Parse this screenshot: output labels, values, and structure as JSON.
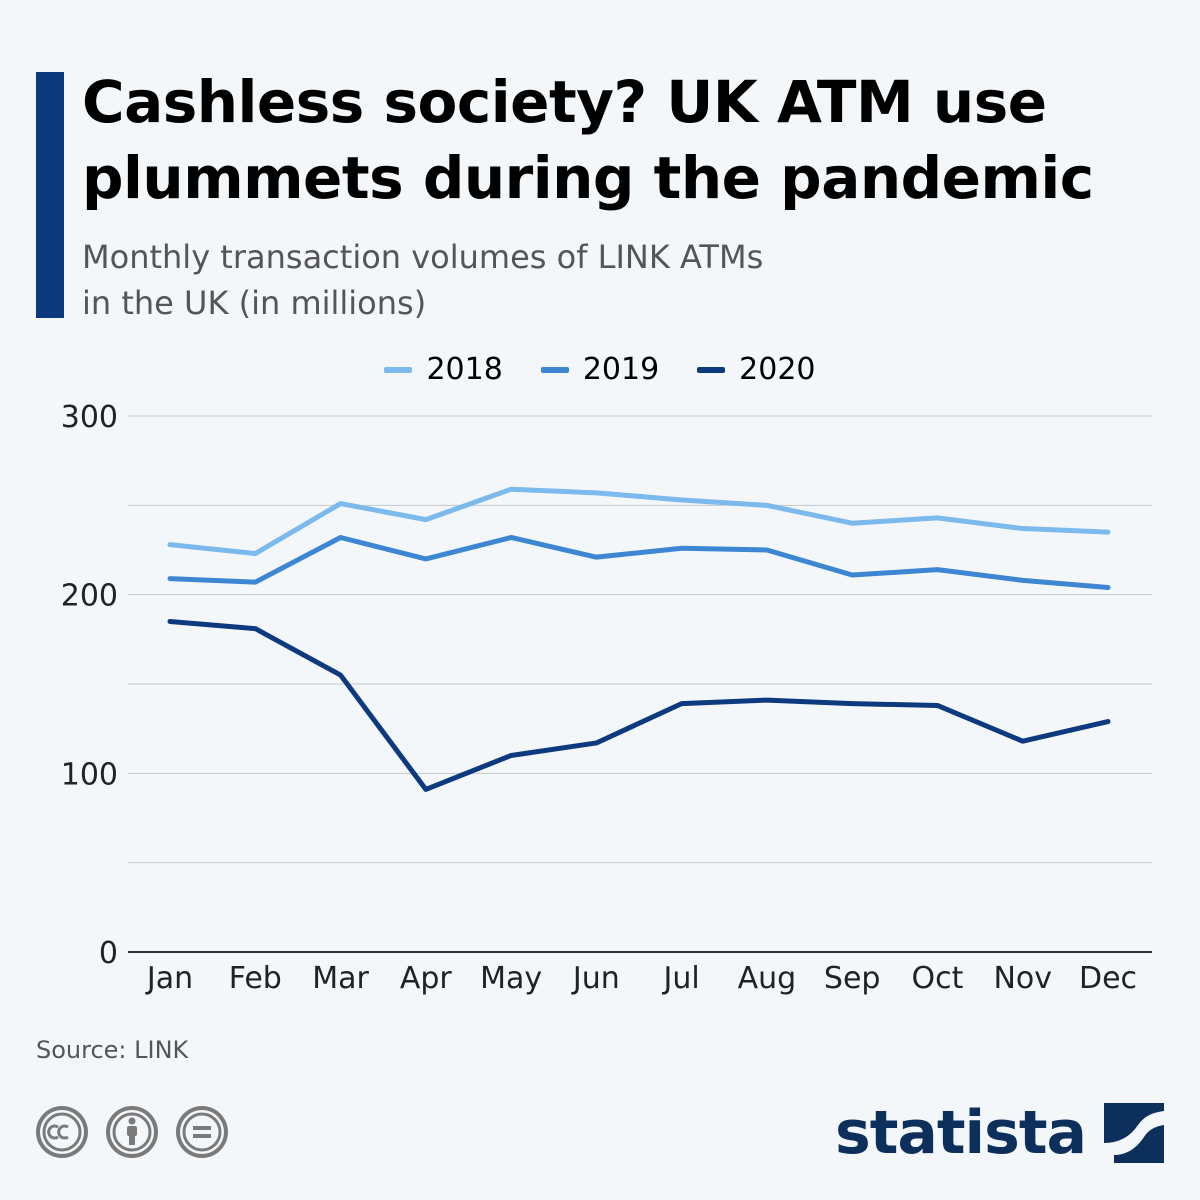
{
  "header": {
    "title": "Cashless society? UK ATM use plummets during the pandemic",
    "subtitle": "Monthly transaction volumes of LINK ATMs in the UK (in millions)"
  },
  "footer": {
    "source": "Source: LINK",
    "brand": "statista",
    "license_icons": [
      "cc-icon",
      "attribution-icon",
      "no-derivatives-icon"
    ]
  },
  "colors": {
    "accent": "#0d3a7f",
    "s2018": "#7cb9ec",
    "s2019": "#3c86d3",
    "s2020": "#0d3a7f",
    "grid": "#c7c7c7",
    "axis": "#333333"
  },
  "chart_data": {
    "type": "line",
    "title": "Cashless society? UK ATM use plummets during the pandemic",
    "xlabel": "",
    "ylabel": "",
    "categories": [
      "Jan",
      "Feb",
      "Mar",
      "Apr",
      "May",
      "Jun",
      "Jul",
      "Aug",
      "Sep",
      "Oct",
      "Nov",
      "Dec"
    ],
    "ylim": [
      0,
      300
    ],
    "yticks": [
      0,
      100,
      200,
      300
    ],
    "grid": true,
    "legend_position": "top-center",
    "series": [
      {
        "name": "2018",
        "color": "#7cb9ec",
        "values": [
          228,
          223,
          251,
          242,
          259,
          257,
          253,
          250,
          240,
          243,
          237,
          235
        ]
      },
      {
        "name": "2019",
        "color": "#3c86d3",
        "values": [
          209,
          207,
          232,
          220,
          232,
          221,
          226,
          225,
          211,
          214,
          208,
          204
        ]
      },
      {
        "name": "2020",
        "color": "#0d3a7f",
        "values": [
          185,
          181,
          155,
          91,
          110,
          117,
          139,
          141,
          139,
          138,
          118,
          129
        ]
      }
    ]
  }
}
